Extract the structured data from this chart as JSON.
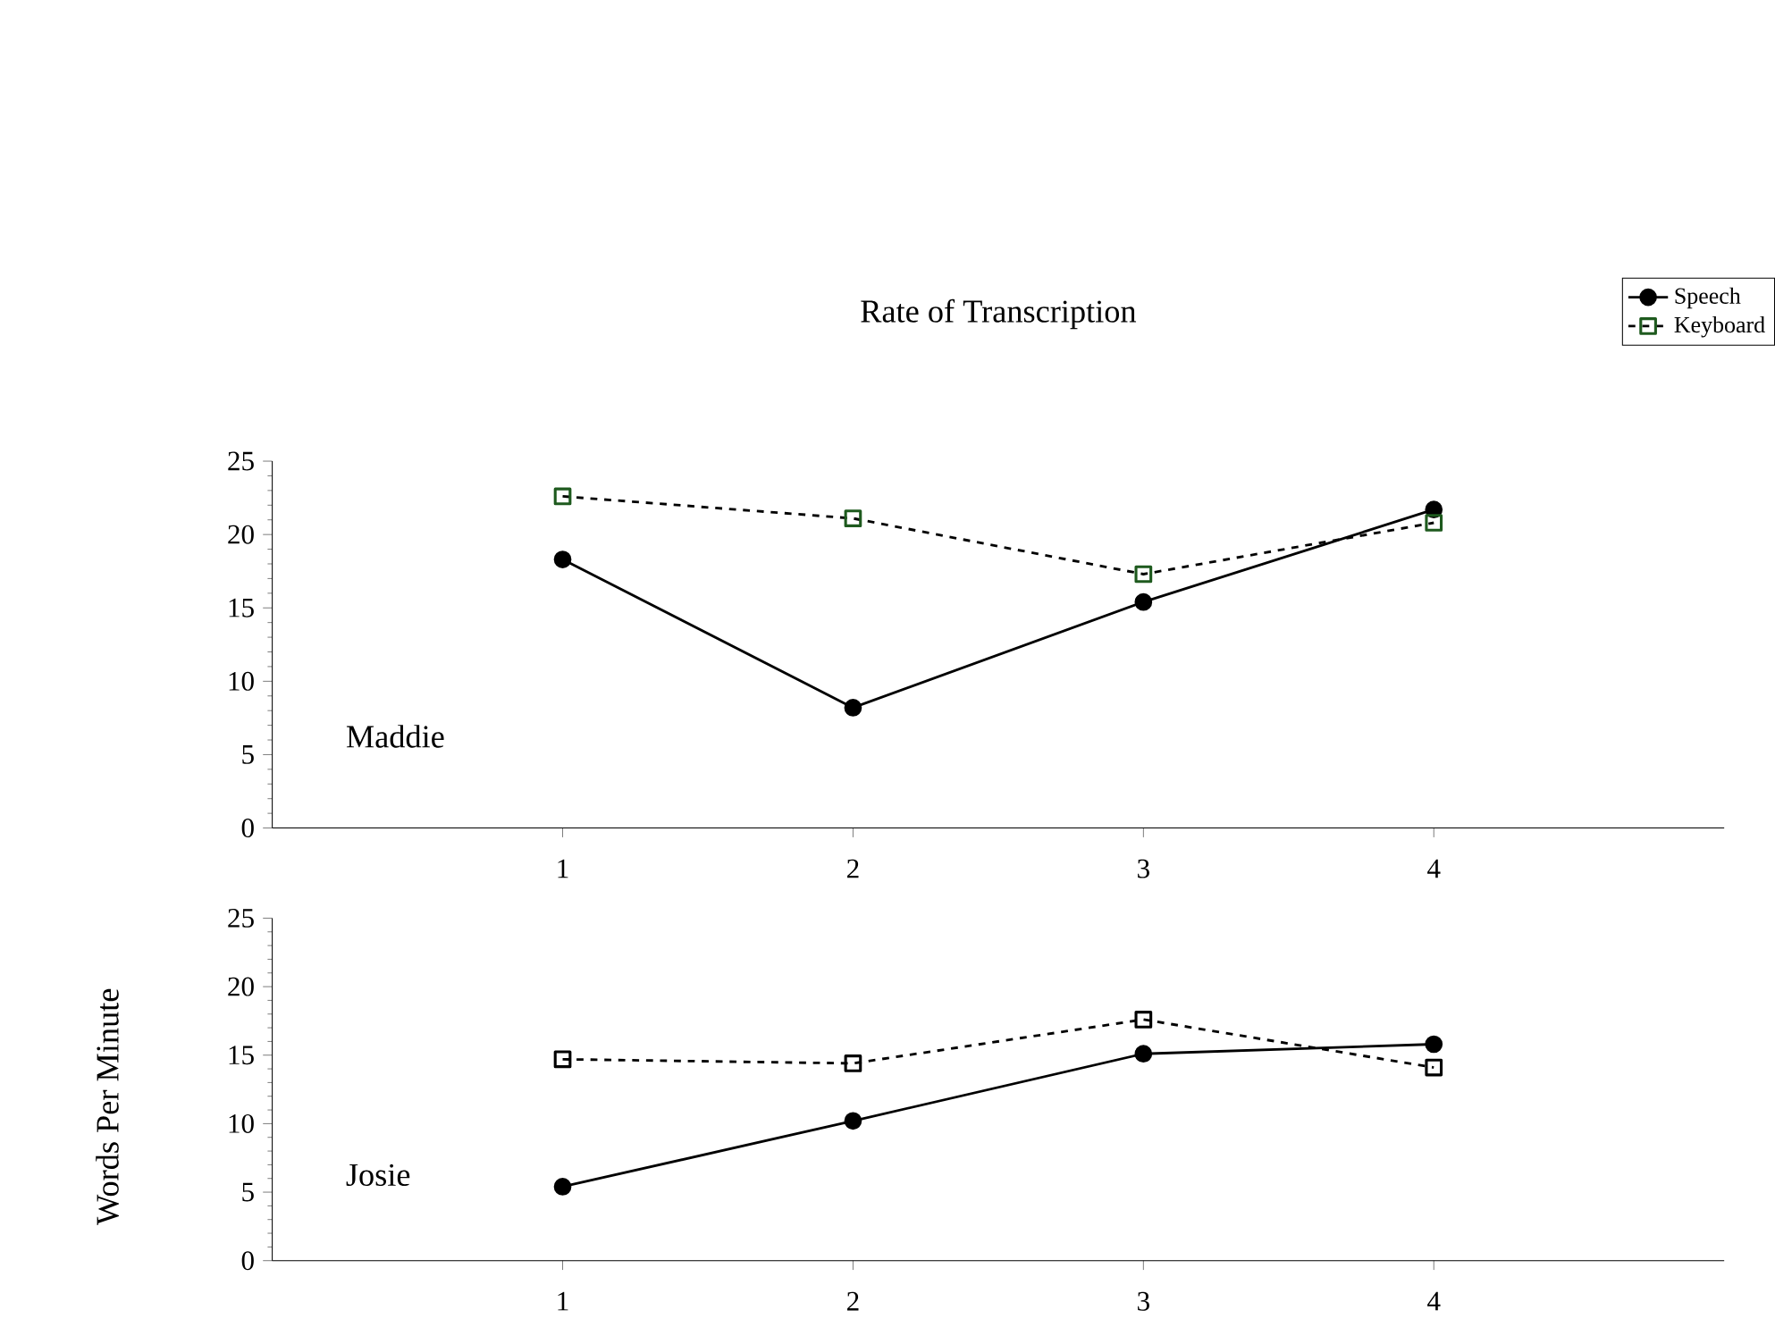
{
  "chart_data": [
    {
      "type": "line",
      "title": "Rate of Transcription",
      "categories": [
        "1",
        "2",
        "3",
        "4"
      ],
      "series": [
        {
          "name": "Speech",
          "color": "#000000",
          "marker": "circle",
          "line_style": "solid",
          "values": [
            18.3,
            8.2,
            15.4,
            21.7
          ]
        },
        {
          "name": "Keyboard",
          "color": "#1e5a1e",
          "marker": "square",
          "line_style": "dashed",
          "values": [
            22.6,
            21.1,
            17.3,
            20.8
          ]
        }
      ],
      "ylim": [
        0,
        25
      ],
      "yticks": [
        0,
        5,
        10,
        15,
        20,
        25
      ],
      "legend": "top right",
      "annotations": [
        "Maddie"
      ]
    },
    {
      "type": "line",
      "categories": [
        "1",
        "2",
        "3",
        "4"
      ],
      "ylabel": "Words Per Minute",
      "series": [
        {
          "color": "#000000",
          "marker": "circle",
          "line_style": "solid",
          "values": [
            5.4,
            10.2,
            15.1,
            15.8
          ]
        },
        {
          "color": "#000000",
          "marker": "square",
          "line_style": "dashed",
          "values": [
            14.7,
            14.4,
            17.6,
            14.1
          ]
        }
      ],
      "ylim": [
        0,
        25
      ],
      "yticks": [
        0,
        5,
        10,
        15,
        20,
        25
      ],
      "annotations": [
        "Josie"
      ]
    }
  ]
}
